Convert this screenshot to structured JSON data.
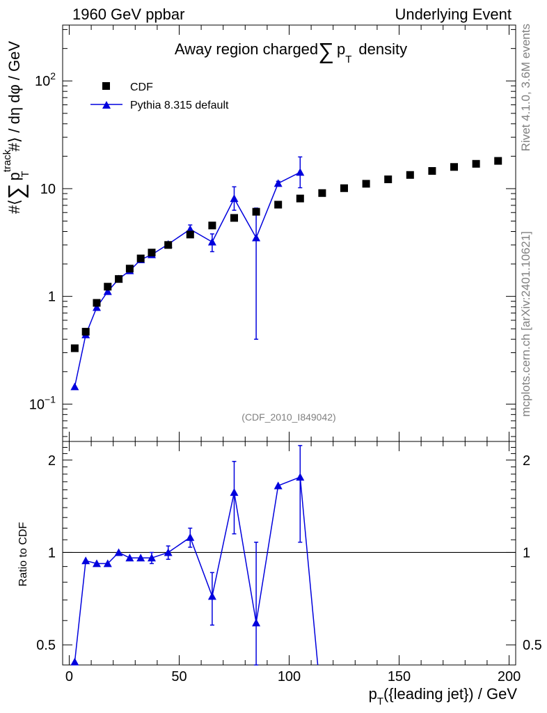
{
  "header": {
    "left": "1960 GeV ppbar",
    "right": "Underlying Event"
  },
  "side": {
    "rivet": "Rivet 4.1.0,  3.6M events",
    "mcplots": "mcplots.cern.ch [arXiv:2401.10621]"
  },
  "chart_data": {
    "type": "scatter",
    "title": "Away region charged Σ pT density",
    "title_parts": {
      "pre": "Away region charged",
      "sum": "∑",
      "p": "p",
      "sub": "T",
      "post": "density"
    },
    "analysis_id": "(CDF_2010_I849042)",
    "xlabel": "pT({leading jet}) / GeV",
    "xlabel_parts": {
      "p": "p",
      "sub": "T",
      "rest": "({leading jet}) / GeV"
    },
    "ylabel": "#⟨ Σ pT^track #⟩ / dη dφ / GeV",
    "ylabel_parts": {
      "open": "#⟨",
      "sum": "∑",
      "p": "p",
      "sup": "track",
      "sub": "T",
      "rest": "#⟩ / dη dφ / GeV"
    },
    "ratio_ylabel": "Ratio to CDF",
    "xlim": [
      -3,
      203
    ],
    "ylim_main": [
      0.045,
      330
    ],
    "ylim_ratio": [
      0.43,
      2.3
    ],
    "x_ticks": [
      0,
      50,
      100,
      150,
      200
    ],
    "x_tick_labels": [
      "0",
      "50",
      "100",
      "150",
      "200"
    ],
    "y_ticks_main": [
      {
        "value": 0.1,
        "base": "10",
        "exp": "−1"
      },
      {
        "value": 1,
        "base": "1",
        "exp": ""
      },
      {
        "value": 10,
        "base": "10",
        "exp": ""
      },
      {
        "value": 100,
        "base": "10",
        "exp": "2"
      }
    ],
    "y_ticks_ratio": [
      {
        "value": 0.5,
        "label": "0.5"
      },
      {
        "value": 1,
        "label": "1"
      },
      {
        "value": 2,
        "label": "2"
      }
    ],
    "legend": [
      {
        "name": "CDF",
        "marker": "square",
        "color": "#000000"
      },
      {
        "name": "Pythia 8.315 default",
        "marker": "triangle",
        "color": "#0000dd"
      }
    ],
    "legend_position": "top-left",
    "series": [
      {
        "name": "CDF",
        "x": [
          2.5,
          7.5,
          12.5,
          17.5,
          22.5,
          27.5,
          32.5,
          37.5,
          45,
          55,
          65,
          75,
          85,
          95,
          105,
          115,
          125,
          135,
          145,
          155,
          165,
          175,
          185,
          195
        ],
        "y": [
          0.33,
          0.47,
          0.87,
          1.23,
          1.45,
          1.81,
          2.25,
          2.55,
          3.0,
          3.75,
          4.55,
          5.35,
          6.1,
          7.1,
          8.1,
          9.1,
          10.1,
          11.1,
          12.2,
          13.4,
          14.6,
          15.9,
          17.0,
          18.1
        ]
      },
      {
        "name": "Pythia 8.315 default",
        "x": [
          2.5,
          7.5,
          12.5,
          17.5,
          22.5,
          27.5,
          32.5,
          37.5,
          45,
          55,
          65,
          75,
          85,
          95,
          105
        ],
        "y": [
          0.145,
          0.44,
          0.79,
          1.11,
          1.45,
          1.73,
          2.19,
          2.44,
          3.05,
          4.2,
          3.2,
          8.1,
          3.5,
          11.2,
          14.2
        ],
        "err_low": [
          0,
          0,
          0,
          0,
          0,
          0,
          0,
          0,
          0.12,
          0.4,
          0.6,
          1.8,
          3.1,
          0.5,
          4.0
        ],
        "err_high": [
          0,
          0,
          0,
          0,
          0,
          0,
          0,
          0,
          0.12,
          0.4,
          0.6,
          2.3,
          3.1,
          0.5,
          5.5
        ]
      }
    ],
    "ratio": {
      "name": "Pythia 8.315 default / CDF",
      "reference": 1,
      "x": [
        2.5,
        7.5,
        12.5,
        17.5,
        22.5,
        27.5,
        32.5,
        37.5,
        45,
        55,
        65,
        75,
        85,
        95,
        105
      ],
      "y": [
        0.44,
        0.94,
        0.92,
        0.92,
        1.0,
        0.96,
        0.96,
        0.96,
        1.0,
        1.12,
        0.72,
        1.57,
        0.59,
        1.65,
        1.76
      ],
      "err_low": [
        0,
        0,
        0,
        0,
        0,
        0,
        0,
        0.04,
        0.05,
        0.08,
        0.14,
        0.42,
        0.49,
        0,
        0.68
      ],
      "err_high": [
        0,
        0,
        0,
        0,
        0,
        0,
        0,
        0.04,
        0.05,
        0.08,
        0.14,
        0.41,
        0.49,
        0,
        0.47
      ],
      "tail_to_x": 113
    }
  }
}
